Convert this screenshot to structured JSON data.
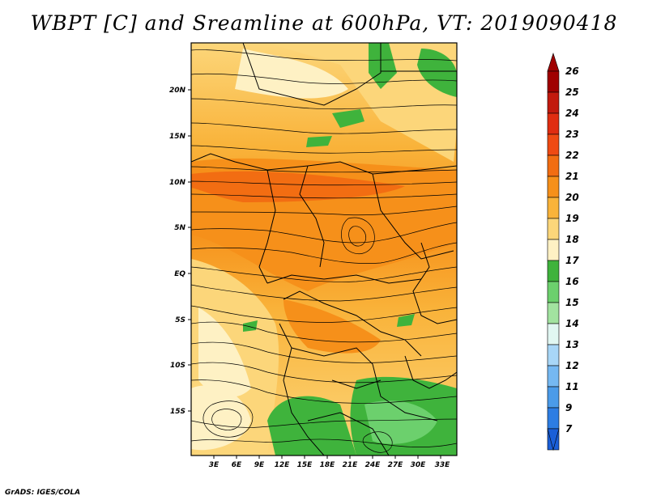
{
  "title": "WBPT [C] and Sreamline at 600hPa, VT: 2019090418",
  "credit": "GrADS: IGES/COLA",
  "map": {
    "lon_labels": [
      "3E",
      "6E",
      "9E",
      "12E",
      "15E",
      "18E",
      "21E",
      "24E",
      "27E",
      "30E",
      "33E"
    ],
    "lat_labels": [
      "20N",
      "15N",
      "10N",
      "5N",
      "EQ",
      "5S",
      "10S",
      "15S"
    ],
    "lon_range": [
      0,
      35
    ],
    "lat_range": [
      -20,
      25
    ]
  },
  "colorbar": {
    "labels": [
      "26",
      "25",
      "24",
      "23",
      "22",
      "21",
      "20",
      "19",
      "18",
      "17",
      "16",
      "15",
      "14",
      "13",
      "12",
      "11",
      "9",
      "7"
    ],
    "colors": [
      "#a00000",
      "#c21a0e",
      "#e02d11",
      "#ef4a13",
      "#f26d12",
      "#f6901a",
      "#f9b33a",
      "#fcd67a",
      "#fef1c4",
      "#3fb33c",
      "#6cd06d",
      "#a2e3a0",
      "#e1f7f2",
      "#a8d6f7",
      "#75b8f2",
      "#4b9be9",
      "#2d7de3",
      "#1a5fd8"
    ]
  }
}
